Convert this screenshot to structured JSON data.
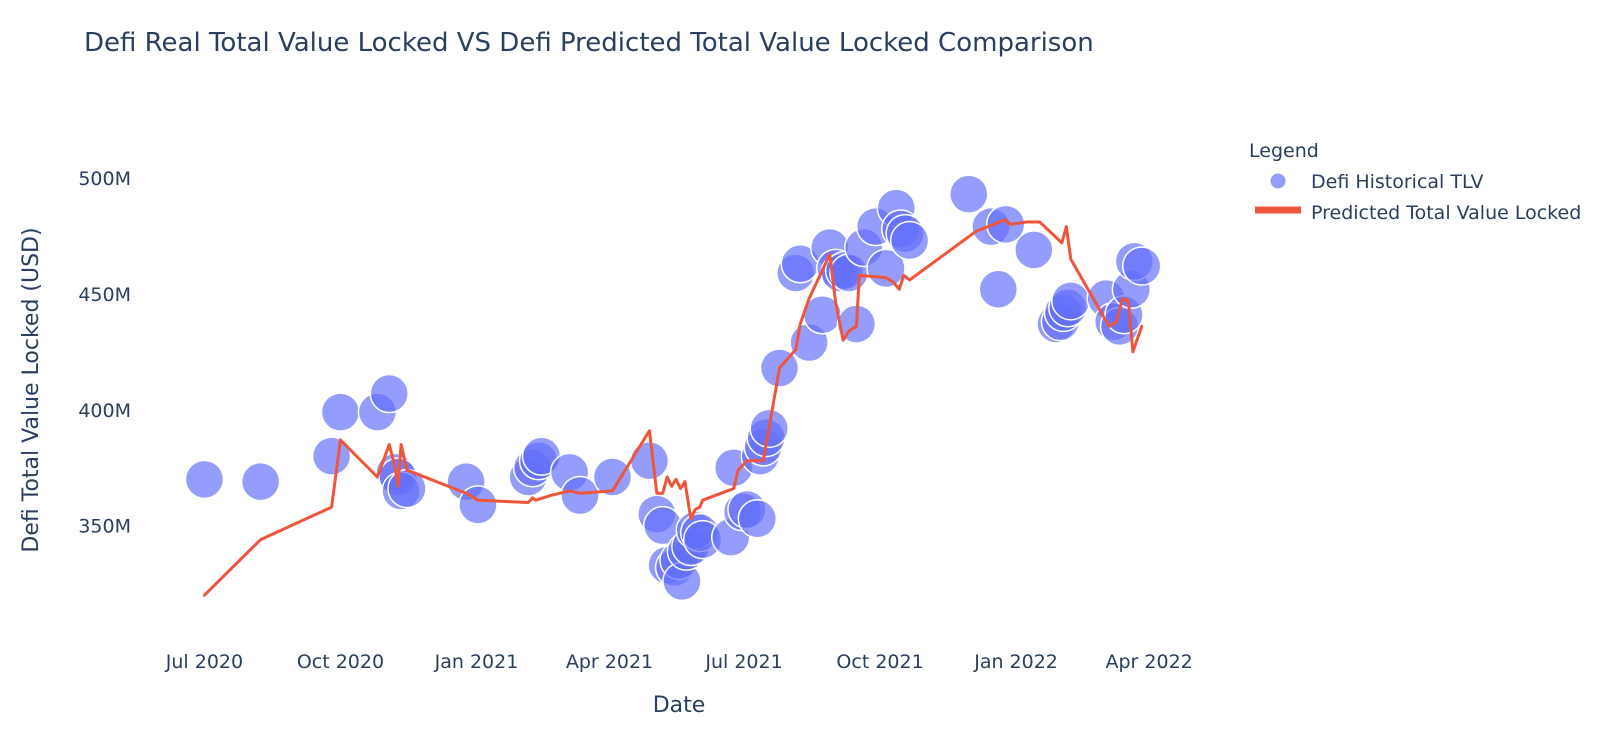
{
  "chart_data": {
    "type": "scatter",
    "title": "Defi Real Total Value Locked VS Defi Predicted Total Value Locked Comparison",
    "xlabel": "Date",
    "ylabel": "Defi Total Value Locked (USD)",
    "x_range": [
      "2020-06-05",
      "2022-04-30"
    ],
    "ylim": [
      305,
      525
    ],
    "x_ticks": [
      {
        "label": "Jul 2020",
        "date": "2020-07-01"
      },
      {
        "label": "Oct 2020",
        "date": "2020-10-01"
      },
      {
        "label": "Jan 2021",
        "date": "2021-01-01"
      },
      {
        "label": "Apr 2021",
        "date": "2021-04-01"
      },
      {
        "label": "Jul 2021",
        "date": "2021-07-01"
      },
      {
        "label": "Oct 2021",
        "date": "2021-10-01"
      },
      {
        "label": "Jan 2022",
        "date": "2022-01-01"
      },
      {
        "label": "Apr 2022",
        "date": "2022-04-01"
      }
    ],
    "y_ticks": [
      {
        "label": "350M",
        "value": 350
      },
      {
        "label": "400M",
        "value": 400
      },
      {
        "label": "450M",
        "value": 450
      },
      {
        "label": "500M",
        "value": 500
      }
    ],
    "grid": false,
    "legend": {
      "title": "Legend",
      "position": "right"
    },
    "series": [
      {
        "name": "Defi Historical TLV",
        "mode": "markers",
        "color": "#636efa",
        "points": [
          [
            "2020-07-01",
            370
          ],
          [
            "2020-08-08",
            369
          ],
          [
            "2020-09-25",
            380
          ],
          [
            "2020-10-01",
            399
          ],
          [
            "2020-10-26",
            399
          ],
          [
            "2020-11-03",
            407
          ],
          [
            "2020-11-07",
            373
          ],
          [
            "2020-11-09",
            371
          ],
          [
            "2020-11-11",
            365
          ],
          [
            "2020-11-15",
            366
          ],
          [
            "2020-12-25",
            369
          ],
          [
            "2021-01-02",
            359
          ],
          [
            "2021-02-05",
            371
          ],
          [
            "2021-02-08",
            375
          ],
          [
            "2021-02-12",
            378
          ],
          [
            "2021-02-14",
            380
          ],
          [
            "2021-03-05",
            373
          ],
          [
            "2021-03-12",
            363
          ],
          [
            "2021-04-03",
            371
          ],
          [
            "2021-04-28",
            378
          ],
          [
            "2021-05-03",
            355
          ],
          [
            "2021-05-07",
            350
          ],
          [
            "2021-05-10",
            333
          ],
          [
            "2021-05-15",
            332
          ],
          [
            "2021-05-18",
            335
          ],
          [
            "2021-05-20",
            326
          ],
          [
            "2021-05-23",
            339
          ],
          [
            "2021-05-26",
            341
          ],
          [
            "2021-05-29",
            348
          ],
          [
            "2021-06-01",
            347
          ],
          [
            "2021-06-03",
            344
          ],
          [
            "2021-06-22",
            345
          ],
          [
            "2021-06-24",
            375
          ],
          [
            "2021-06-30",
            356
          ],
          [
            "2021-07-03",
            357
          ],
          [
            "2021-07-10",
            353
          ],
          [
            "2021-07-12",
            380
          ],
          [
            "2021-07-14",
            384
          ],
          [
            "2021-07-16",
            388
          ],
          [
            "2021-07-18",
            392
          ],
          [
            "2021-07-25",
            418
          ],
          [
            "2021-08-05",
            459
          ],
          [
            "2021-08-08",
            463
          ],
          [
            "2021-08-14",
            429
          ],
          [
            "2021-08-23",
            441
          ],
          [
            "2021-08-28",
            470
          ],
          [
            "2021-09-01",
            461
          ],
          [
            "2021-09-04",
            459
          ],
          [
            "2021-09-07",
            460
          ],
          [
            "2021-09-10",
            459
          ],
          [
            "2021-09-15",
            437
          ],
          [
            "2021-09-20",
            470
          ],
          [
            "2021-09-28",
            479
          ],
          [
            "2021-10-05",
            461
          ],
          [
            "2021-10-12",
            487
          ],
          [
            "2021-10-15",
            478
          ],
          [
            "2021-10-18",
            476
          ],
          [
            "2021-10-21",
            473
          ],
          [
            "2021-11-30",
            493
          ],
          [
            "2021-12-15",
            479
          ],
          [
            "2021-12-20",
            452
          ],
          [
            "2021-12-25",
            480
          ],
          [
            "2022-01-13",
            469
          ],
          [
            "2022-01-28",
            437
          ],
          [
            "2022-01-31",
            438
          ],
          [
            "2022-02-02",
            442
          ],
          [
            "2022-02-05",
            444
          ],
          [
            "2022-02-07",
            447
          ],
          [
            "2022-03-03",
            448
          ],
          [
            "2022-03-08",
            438
          ],
          [
            "2022-03-12",
            436
          ],
          [
            "2022-03-15",
            441
          ],
          [
            "2022-03-20",
            452
          ],
          [
            "2022-03-22",
            464
          ],
          [
            "2022-03-27",
            462
          ]
        ]
      },
      {
        "name": "Predicted Total Value Locked",
        "mode": "lines",
        "color": "#ef553b",
        "points": [
          [
            "2020-07-01",
            320
          ],
          [
            "2020-08-08",
            344
          ],
          [
            "2020-09-25",
            358
          ],
          [
            "2020-10-01",
            387
          ],
          [
            "2020-10-26",
            371
          ],
          [
            "2020-11-03",
            385
          ],
          [
            "2020-11-07",
            375
          ],
          [
            "2020-11-09",
            367
          ],
          [
            "2020-11-11",
            385
          ],
          [
            "2020-11-15",
            374
          ],
          [
            "2020-12-25",
            364
          ],
          [
            "2021-01-02",
            361
          ],
          [
            "2021-02-05",
            360
          ],
          [
            "2021-02-08",
            362
          ],
          [
            "2021-02-10",
            361
          ],
          [
            "2021-02-20",
            363
          ],
          [
            "2021-03-05",
            365
          ],
          [
            "2021-03-12",
            364
          ],
          [
            "2021-04-03",
            365
          ],
          [
            "2021-04-28",
            391
          ],
          [
            "2021-05-03",
            364
          ],
          [
            "2021-05-07",
            364
          ],
          [
            "2021-05-10",
            371
          ],
          [
            "2021-05-13",
            367
          ],
          [
            "2021-05-16",
            370
          ],
          [
            "2021-05-19",
            366
          ],
          [
            "2021-05-22",
            369
          ],
          [
            "2021-05-26",
            353
          ],
          [
            "2021-05-29",
            357
          ],
          [
            "2021-06-01",
            358
          ],
          [
            "2021-06-03",
            361
          ],
          [
            "2021-06-24",
            366
          ],
          [
            "2021-06-27",
            374
          ],
          [
            "2021-07-03",
            378
          ],
          [
            "2021-07-14",
            378
          ],
          [
            "2021-07-25",
            418
          ],
          [
            "2021-08-05",
            426
          ],
          [
            "2021-08-08",
            437
          ],
          [
            "2021-08-14",
            448
          ],
          [
            "2021-08-28",
            467
          ],
          [
            "2021-09-01",
            446
          ],
          [
            "2021-09-06",
            430
          ],
          [
            "2021-09-10",
            434
          ],
          [
            "2021-09-15",
            436
          ],
          [
            "2021-09-17",
            458
          ],
          [
            "2021-10-05",
            457
          ],
          [
            "2021-10-10",
            455
          ],
          [
            "2021-10-14",
            452
          ],
          [
            "2021-10-17",
            458
          ],
          [
            "2021-10-21",
            456
          ],
          [
            "2021-12-05",
            477
          ],
          [
            "2021-12-25",
            482
          ],
          [
            "2021-12-28",
            480
          ],
          [
            "2022-01-08",
            481
          ],
          [
            "2022-01-17",
            481
          ],
          [
            "2022-02-01",
            472
          ],
          [
            "2022-02-04",
            479
          ],
          [
            "2022-02-07",
            465
          ],
          [
            "2022-03-05",
            436
          ],
          [
            "2022-03-10",
            438
          ],
          [
            "2022-03-14",
            448
          ],
          [
            "2022-03-18",
            447
          ],
          [
            "2022-03-21",
            425
          ],
          [
            "2022-03-27",
            436
          ]
        ]
      }
    ]
  }
}
